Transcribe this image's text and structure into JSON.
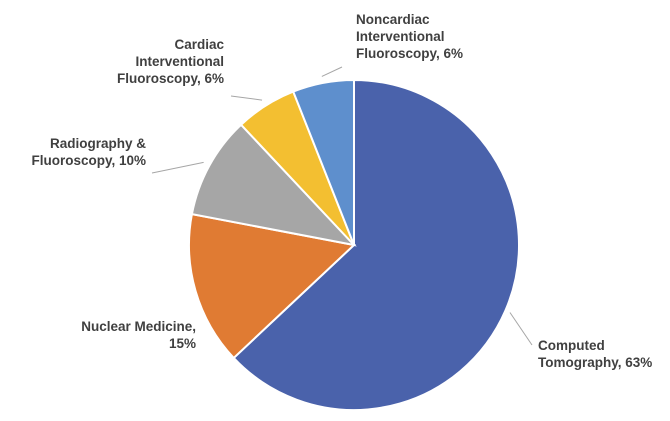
{
  "chart_data": {
    "type": "pie",
    "title": "",
    "slices": [
      {
        "label": [
          "Computed",
          "Tomography, 63%"
        ],
        "name": "Computed Tomography",
        "value": 63,
        "color": "#4a62ab"
      },
      {
        "label": [
          "Nuclear Medicine,",
          "15%"
        ],
        "name": "Nuclear Medicine",
        "value": 15,
        "color": "#e07b33"
      },
      {
        "label": [
          "Radiography &",
          "Fluoroscopy, 10%"
        ],
        "name": "Radiography & Fluoroscopy",
        "value": 10,
        "color": "#a6a6a6"
      },
      {
        "label": [
          "Cardiac",
          "Interventional",
          "Fluoroscopy, 6%"
        ],
        "name": "Cardiac Interventional Fluoroscopy",
        "value": 6,
        "color": "#f3bf31"
      },
      {
        "label": [
          "Noncardiac",
          "Interventional",
          "Fluoroscopy, 6%"
        ],
        "name": "Noncardiac Interventional Fluoroscopy",
        "value": 6,
        "color": "#5e8fcd"
      }
    ],
    "start_angle": "12 o'clock",
    "direction": "clockwise",
    "legend": "none"
  }
}
